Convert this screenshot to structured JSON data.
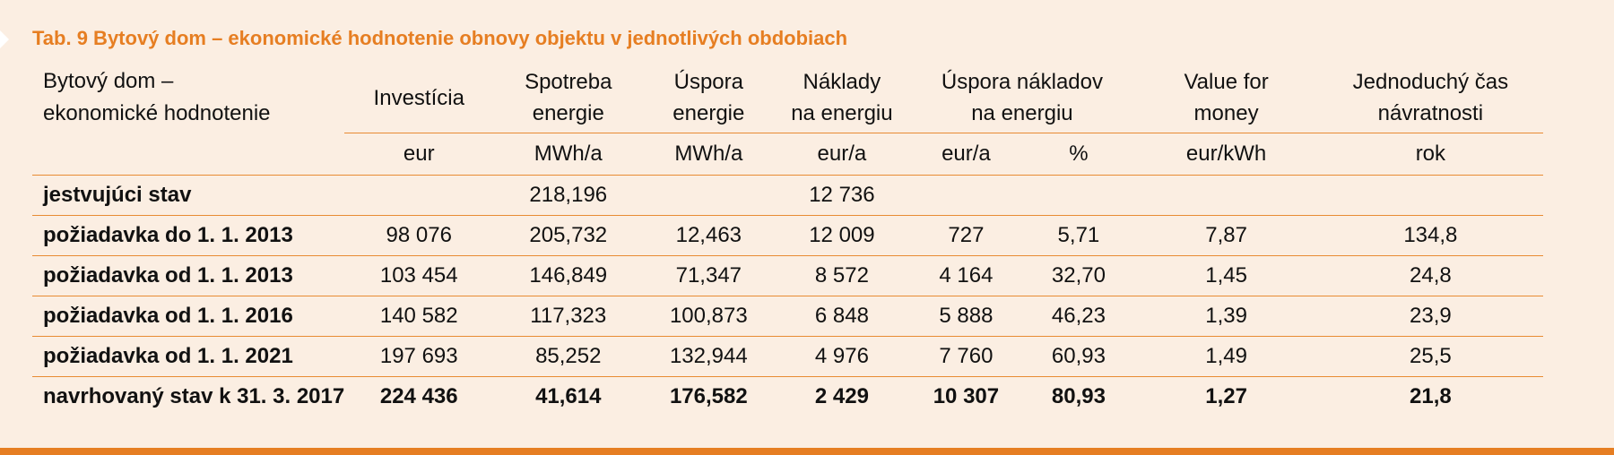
{
  "caption": "Tab. 9 Bytový dom – ekonomické hodnotenie obnovy objektu v jednotlivých obdobiach",
  "header": {
    "first_line1": "Bytový dom –",
    "first_line2": "ekonomické hodnotenie",
    "columns": [
      {
        "line1": "Investícia",
        "line2": ""
      },
      {
        "line1": "Spotreba",
        "line2": "energie"
      },
      {
        "line1": "Úspora",
        "line2": "energie"
      },
      {
        "line1": "Náklady",
        "line2": "na energiu"
      },
      {
        "line1": "Úspora nákladov",
        "line2": "na energiu"
      },
      {
        "line1": "Value for",
        "line2": "money"
      },
      {
        "line1": "Jednoduchý čas",
        "line2": "návratnosti"
      }
    ],
    "units": [
      "eur",
      "MWh/a",
      "MWh/a",
      "eur/a",
      "eur/a",
      "%",
      "eur/kWh",
      "rok"
    ]
  },
  "rows": [
    {
      "label": "jestvujúci stav",
      "values": [
        "",
        "218,196",
        "",
        "12 736",
        "",
        "",
        "",
        ""
      ]
    },
    {
      "label": "požiadavka do 1. 1. 2013",
      "values": [
        "98 076",
        "205,732",
        "12,463",
        "12 009",
        "727",
        "5,71",
        "7,87",
        "134,8"
      ]
    },
    {
      "label": "požiadavka od 1. 1. 2013",
      "values": [
        "103 454",
        "146,849",
        "71,347",
        "8 572",
        "4 164",
        "32,70",
        "1,45",
        "24,8"
      ]
    },
    {
      "label": "požiadavka od 1. 1. 2016",
      "values": [
        "140 582",
        "117,323",
        "100,873",
        "6 848",
        "5 888",
        "46,23",
        "1,39",
        "23,9"
      ]
    },
    {
      "label": "požiadavka od 1. 1. 2021",
      "values": [
        "197 693",
        "85,252",
        "132,944",
        "4 976",
        "7 760",
        "60,93",
        "1,49",
        "25,5"
      ]
    },
    {
      "label": "navrhovaný stav k 31. 3. 2017",
      "values": [
        "224 436",
        "41,614",
        "176,582",
        "2 429",
        "10 307",
        "80,93",
        "1,27",
        "21,8"
      ]
    }
  ],
  "colors": {
    "accent": "#e67e22",
    "background": "#fbeee2",
    "rule": "#e88b33"
  }
}
